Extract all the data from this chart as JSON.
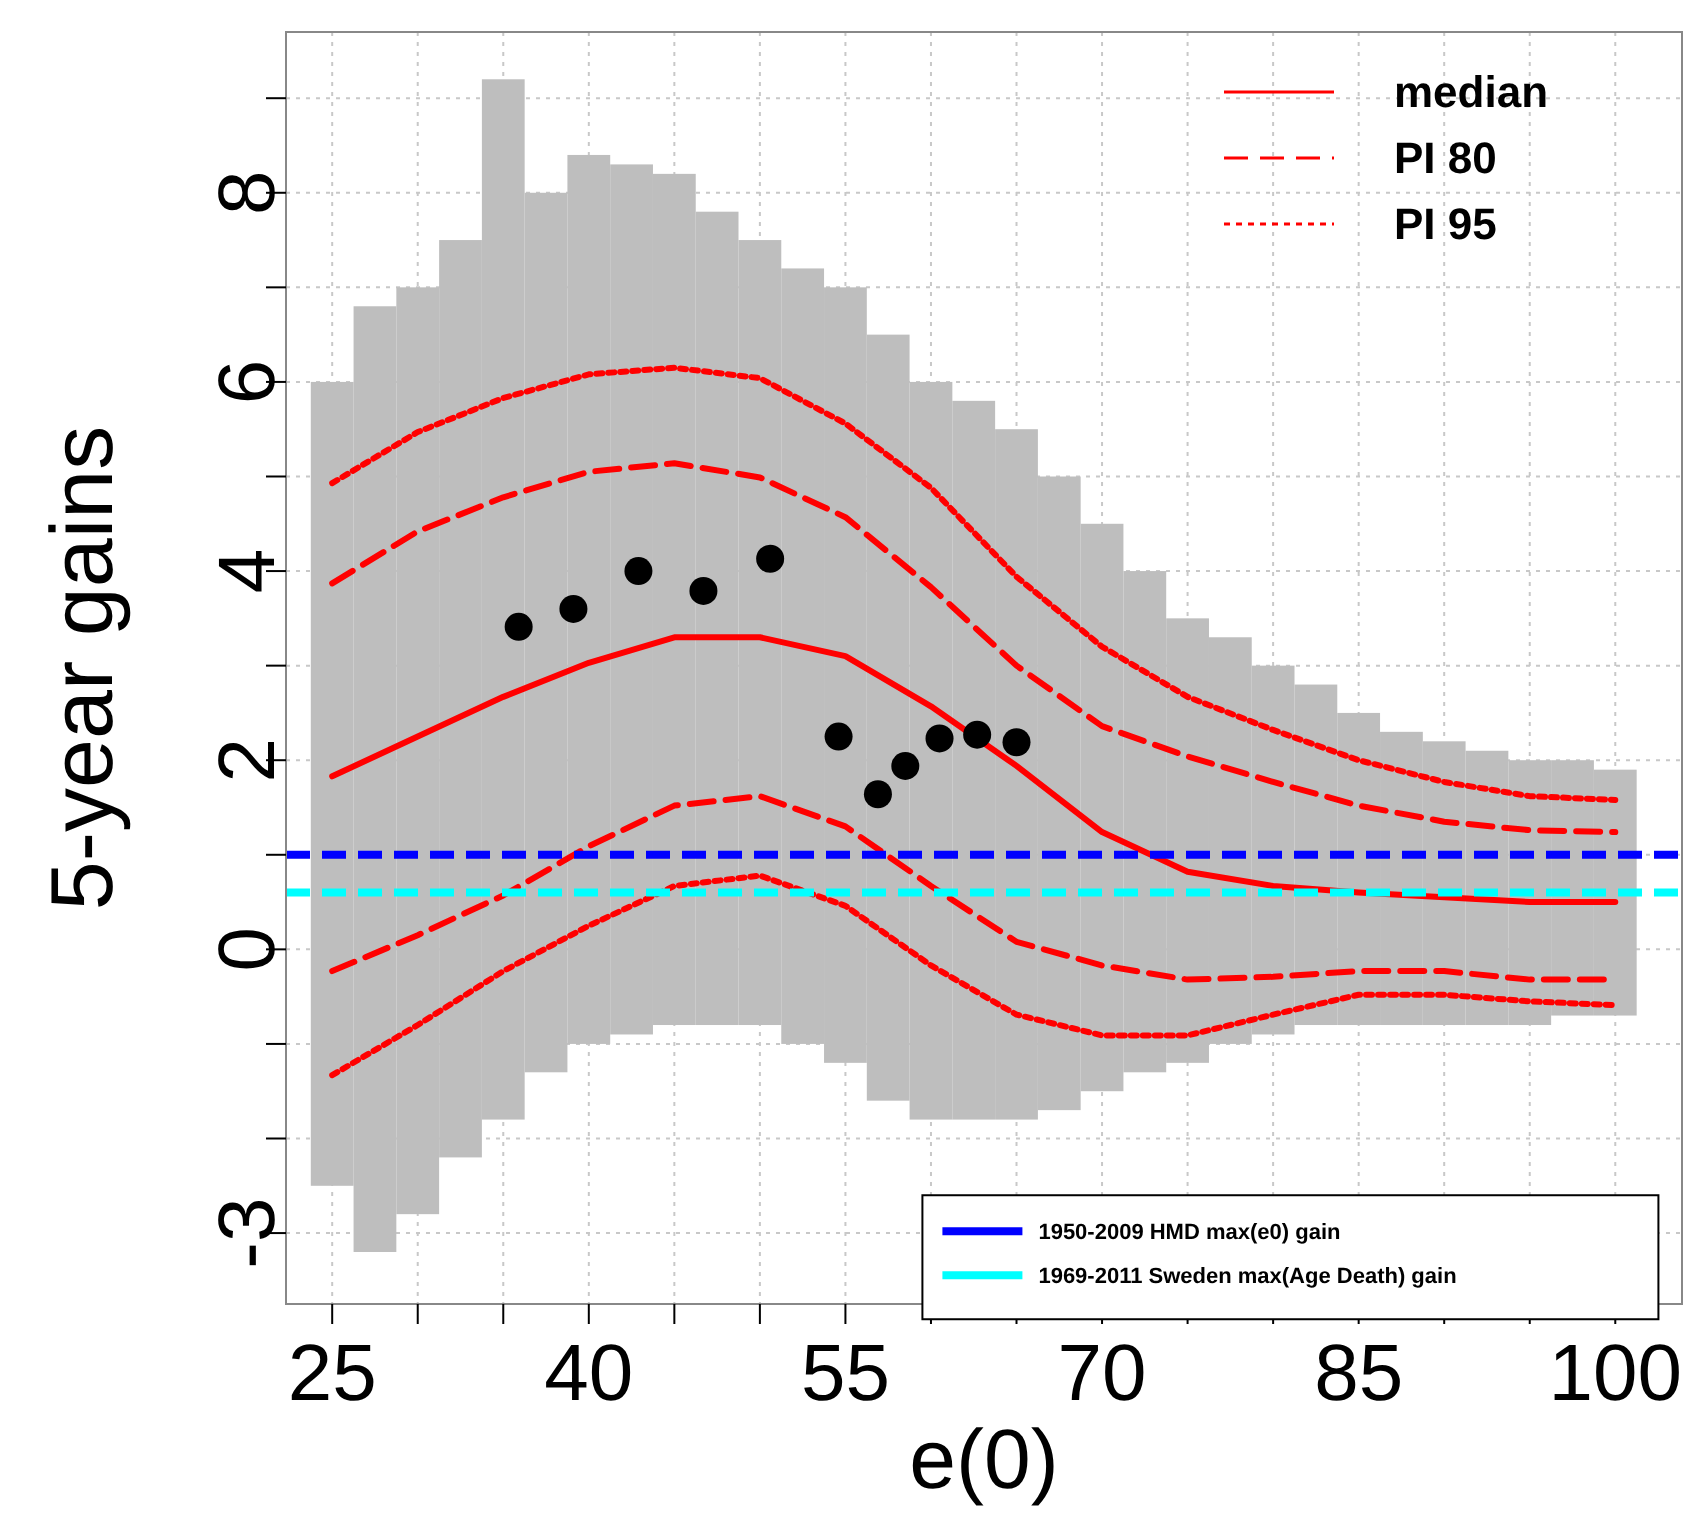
{
  "chart_data": {
    "type": "line",
    "xlabel": "e(0)",
    "ylabel": "5-year gains",
    "xlim": [
      22.3,
      103.9
    ],
    "ylim": [
      -3.75,
      9.7
    ],
    "xticks": [
      25,
      {
        "value": 30,
        "label": null
      },
      {
        "value": 35,
        "label": null
      },
      40,
      {
        "value": 45,
        "label": null
      },
      {
        "value": 50,
        "label": null
      },
      55,
      {
        "value": 60,
        "label": null
      },
      {
        "value": 65,
        "label": null
      },
      70,
      {
        "value": 75,
        "label": null
      },
      {
        "value": 80,
        "label": null
      },
      85,
      {
        "value": 90,
        "label": null
      },
      {
        "value": 95,
        "label": null
      },
      100
    ],
    "yticks": [
      -3,
      {
        "value": -2,
        "label": null
      },
      {
        "value": -1,
        "label": null
      },
      0,
      {
        "value": 1,
        "label": null
      },
      2,
      {
        "value": 3,
        "label": null
      },
      4,
      {
        "value": 5,
        "label": null
      },
      6,
      {
        "value": 7,
        "label": null
      },
      8,
      {
        "value": 9,
        "label": null
      }
    ],
    "grid": true,
    "legend": "right",
    "series": [
      {
        "type": "bar",
        "color": "#bebebe",
        "x": [
          25,
          27.5,
          30,
          32.5,
          35,
          37.5,
          40,
          42.5,
          45,
          47.5,
          50,
          52.5,
          55,
          57.5,
          60,
          62.5,
          65,
          67.5,
          70,
          72.5,
          75,
          77.5,
          80,
          82.5,
          85,
          87.5,
          90,
          92.5,
          95,
          97.5,
          100
        ],
        "base": [
          -2.5,
          -3.2,
          -2.8,
          -2.2,
          -1.8,
          -1.3,
          -1.0,
          -0.9,
          -0.8,
          -0.8,
          -0.8,
          -1.0,
          -1.2,
          -1.6,
          -1.8,
          -1.8,
          -1.8,
          -1.7,
          -1.5,
          -1.3,
          -1.2,
          -1.0,
          -0.9,
          -0.8,
          -0.8,
          -0.8,
          -0.8,
          -0.8,
          -0.8,
          -0.7,
          -0.7
        ],
        "values": [
          8.5,
          10.0,
          9.8,
          9.7,
          11.0,
          9.3,
          9.4,
          9.2,
          9.0,
          8.6,
          8.3,
          8.2,
          8.2,
          8.1,
          7.8,
          7.6,
          7.3,
          6.7,
          6.0,
          5.3,
          4.7,
          4.3,
          3.9,
          3.6,
          3.3,
          3.1,
          3.0,
          2.9,
          2.8,
          2.7,
          2.6
        ]
      },
      {
        "name": "median",
        "color": "#ff0000",
        "line_style": "solid",
        "x": [
          25,
          30,
          35,
          40,
          45,
          50,
          55,
          60,
          65,
          70,
          75,
          80,
          85,
          90,
          95,
          100
        ],
        "values": [
          1.83,
          2.25,
          2.67,
          3.03,
          3.3,
          3.3,
          3.1,
          2.57,
          1.94,
          1.24,
          0.82,
          0.67,
          0.6,
          0.55,
          0.5,
          0.5
        ]
      },
      {
        "name": "PI 80",
        "color": "#ff0000",
        "line_style": "dashed",
        "x": [
          25,
          30,
          35,
          40,
          45,
          50,
          55,
          60,
          65,
          70,
          75,
          80,
          85,
          90,
          95,
          100
        ],
        "values": [
          3.87,
          4.42,
          4.78,
          5.05,
          5.14,
          4.99,
          4.57,
          3.83,
          3.0,
          2.36,
          2.04,
          1.77,
          1.52,
          1.35,
          1.26,
          1.24
        ]
      },
      {
        "color": "#ff0000",
        "line_style": "dashed",
        "x": [
          25,
          30,
          35,
          40,
          45,
          50,
          55,
          60,
          65,
          70,
          75,
          80,
          85,
          90,
          95,
          100
        ],
        "values": [
          -0.23,
          0.15,
          0.57,
          1.09,
          1.52,
          1.62,
          1.3,
          0.67,
          0.08,
          -0.17,
          -0.32,
          -0.29,
          -0.23,
          -0.23,
          -0.32,
          -0.32
        ]
      },
      {
        "name": "PI 95",
        "color": "#ff0000",
        "line_style": "dotted",
        "x": [
          25,
          30,
          35,
          40,
          45,
          50,
          55,
          60,
          65,
          70,
          75,
          80,
          85,
          90,
          95,
          100
        ],
        "values": [
          4.93,
          5.47,
          5.83,
          6.08,
          6.15,
          6.04,
          5.56,
          4.88,
          3.94,
          3.2,
          2.67,
          2.32,
          2.0,
          1.77,
          1.62,
          1.58
        ]
      },
      {
        "color": "#ff0000",
        "line_style": "dotted",
        "x": [
          25,
          30,
          35,
          40,
          45,
          50,
          55,
          60,
          65,
          70,
          75,
          80,
          85,
          90,
          95,
          100
        ],
        "values": [
          -1.33,
          -0.8,
          -0.23,
          0.25,
          0.67,
          0.78,
          0.46,
          -0.17,
          -0.69,
          -0.91,
          -0.91,
          -0.69,
          -0.48,
          -0.48,
          -0.55,
          -0.59
        ]
      },
      {
        "type": "scatter",
        "color": "#000000",
        "marker": "circle",
        "x": [
          35.9,
          39.1,
          42.9,
          46.7,
          50.6,
          54.6,
          56.9,
          58.5,
          60.5,
          62.7,
          65.0
        ],
        "values": [
          3.41,
          3.6,
          4.0,
          3.79,
          4.13,
          2.25,
          1.64,
          1.94,
          2.23,
          2.27,
          2.19
        ]
      }
    ],
    "ref_lines": [
      {
        "axis": "y",
        "value": 1.0,
        "label": "1950-2009 HMD max(e0) gain",
        "color": "#0000ff",
        "line_style": "dashed"
      },
      {
        "axis": "y",
        "value": 0.6,
        "label": "1969-2011 Sweden max(Age Death) gain",
        "color": "#00ffff",
        "line_style": "dashed"
      }
    ]
  }
}
